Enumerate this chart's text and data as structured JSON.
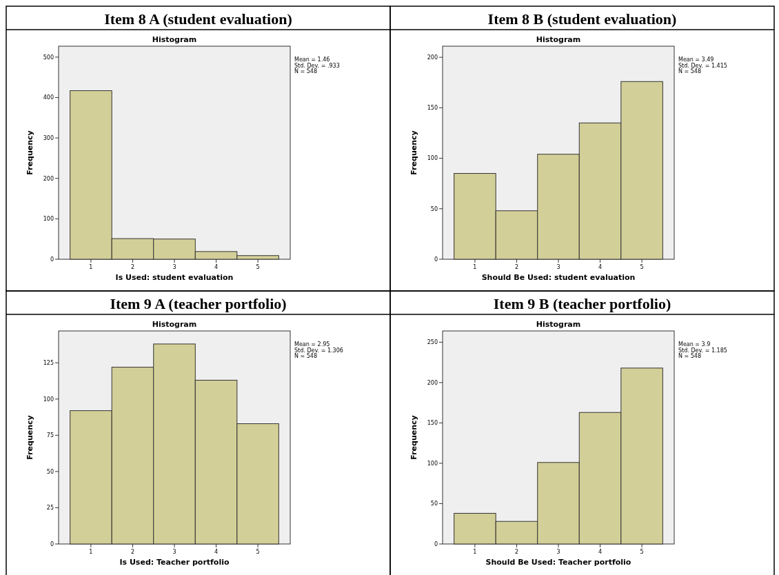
{
  "chart_data": [
    {
      "type": "histogram",
      "title": "Item 8 A (student evaluation)",
      "subtitle": "Histogram",
      "xlabel": "Is Used: student evaluation",
      "ylabel": "Frequency",
      "bins": [
        0.5,
        1.5,
        2.5,
        3.5,
        4.5,
        5.5
      ],
      "values": [
        417,
        51,
        50,
        19,
        9
      ],
      "color": "#d3cf98",
      "xlim": [
        0.225,
        5.775
      ],
      "xticks": [
        1,
        2,
        3,
        4,
        5
      ],
      "ylim": [
        0,
        527
      ],
      "yticks": [
        0,
        100,
        200,
        300,
        400,
        500
      ],
      "annotations": [
        "Mean = 1.46",
        "Std. Dev. = .933",
        "N = 548"
      ]
    },
    {
      "type": "histogram",
      "title": "Item 8 B (student evaluation)",
      "subtitle": "Histogram",
      "xlabel": "Should Be Used: student evaluation",
      "ylabel": "Frequency",
      "bins": [
        0.5,
        1.5,
        2.5,
        3.5,
        4.5,
        5.5
      ],
      "values": [
        85,
        48,
        104,
        135,
        176
      ],
      "color": "#d3cf98",
      "xlim": [
        0.225,
        5.775
      ],
      "xticks": [
        1,
        2,
        3,
        4,
        5
      ],
      "ylim": [
        0,
        211
      ],
      "yticks": [
        0,
        50,
        100,
        150,
        200
      ],
      "annotations": [
        "Mean = 3.49",
        "Std. Dev. = 1.415",
        "N = 548"
      ]
    },
    {
      "type": "histogram",
      "title": "Item 9 A (teacher portfolio)",
      "subtitle": "Histogram",
      "xlabel": "Is Used: Teacher portfolio",
      "ylabel": "Frequency",
      "bins": [
        0.5,
        1.5,
        2.5,
        3.5,
        4.5,
        5.5
      ],
      "values": [
        92,
        122,
        138,
        113,
        83
      ],
      "color": "#d3cf98",
      "xlim": [
        0.225,
        5.775
      ],
      "xticks": [
        1,
        2,
        3,
        4,
        5
      ],
      "ylim": [
        0,
        147
      ],
      "yticks": [
        0,
        25,
        50,
        75,
        100,
        125
      ],
      "annotations": [
        "Mean = 2.95",
        "Std. Dev. = 1.306",
        "N = 548"
      ]
    },
    {
      "type": "histogram",
      "title": "Item 9 B (teacher portfolio)",
      "subtitle": "Histogram",
      "xlabel": "Should Be Used: Teacher portfolio",
      "ylabel": "Frequency",
      "bins": [
        0.5,
        1.5,
        2.5,
        3.5,
        4.5,
        5.5
      ],
      "values": [
        38,
        28,
        101,
        163,
        218
      ],
      "color": "#d3cf98",
      "xlim": [
        0.225,
        5.775
      ],
      "xticks": [
        1,
        2,
        3,
        4,
        5
      ],
      "ylim": [
        0,
        264
      ],
      "yticks": [
        0,
        50,
        100,
        150,
        200,
        250
      ],
      "annotations": [
        "Mean = 3.9",
        "Std. Dev. = 1.185",
        "N = 548"
      ]
    }
  ]
}
